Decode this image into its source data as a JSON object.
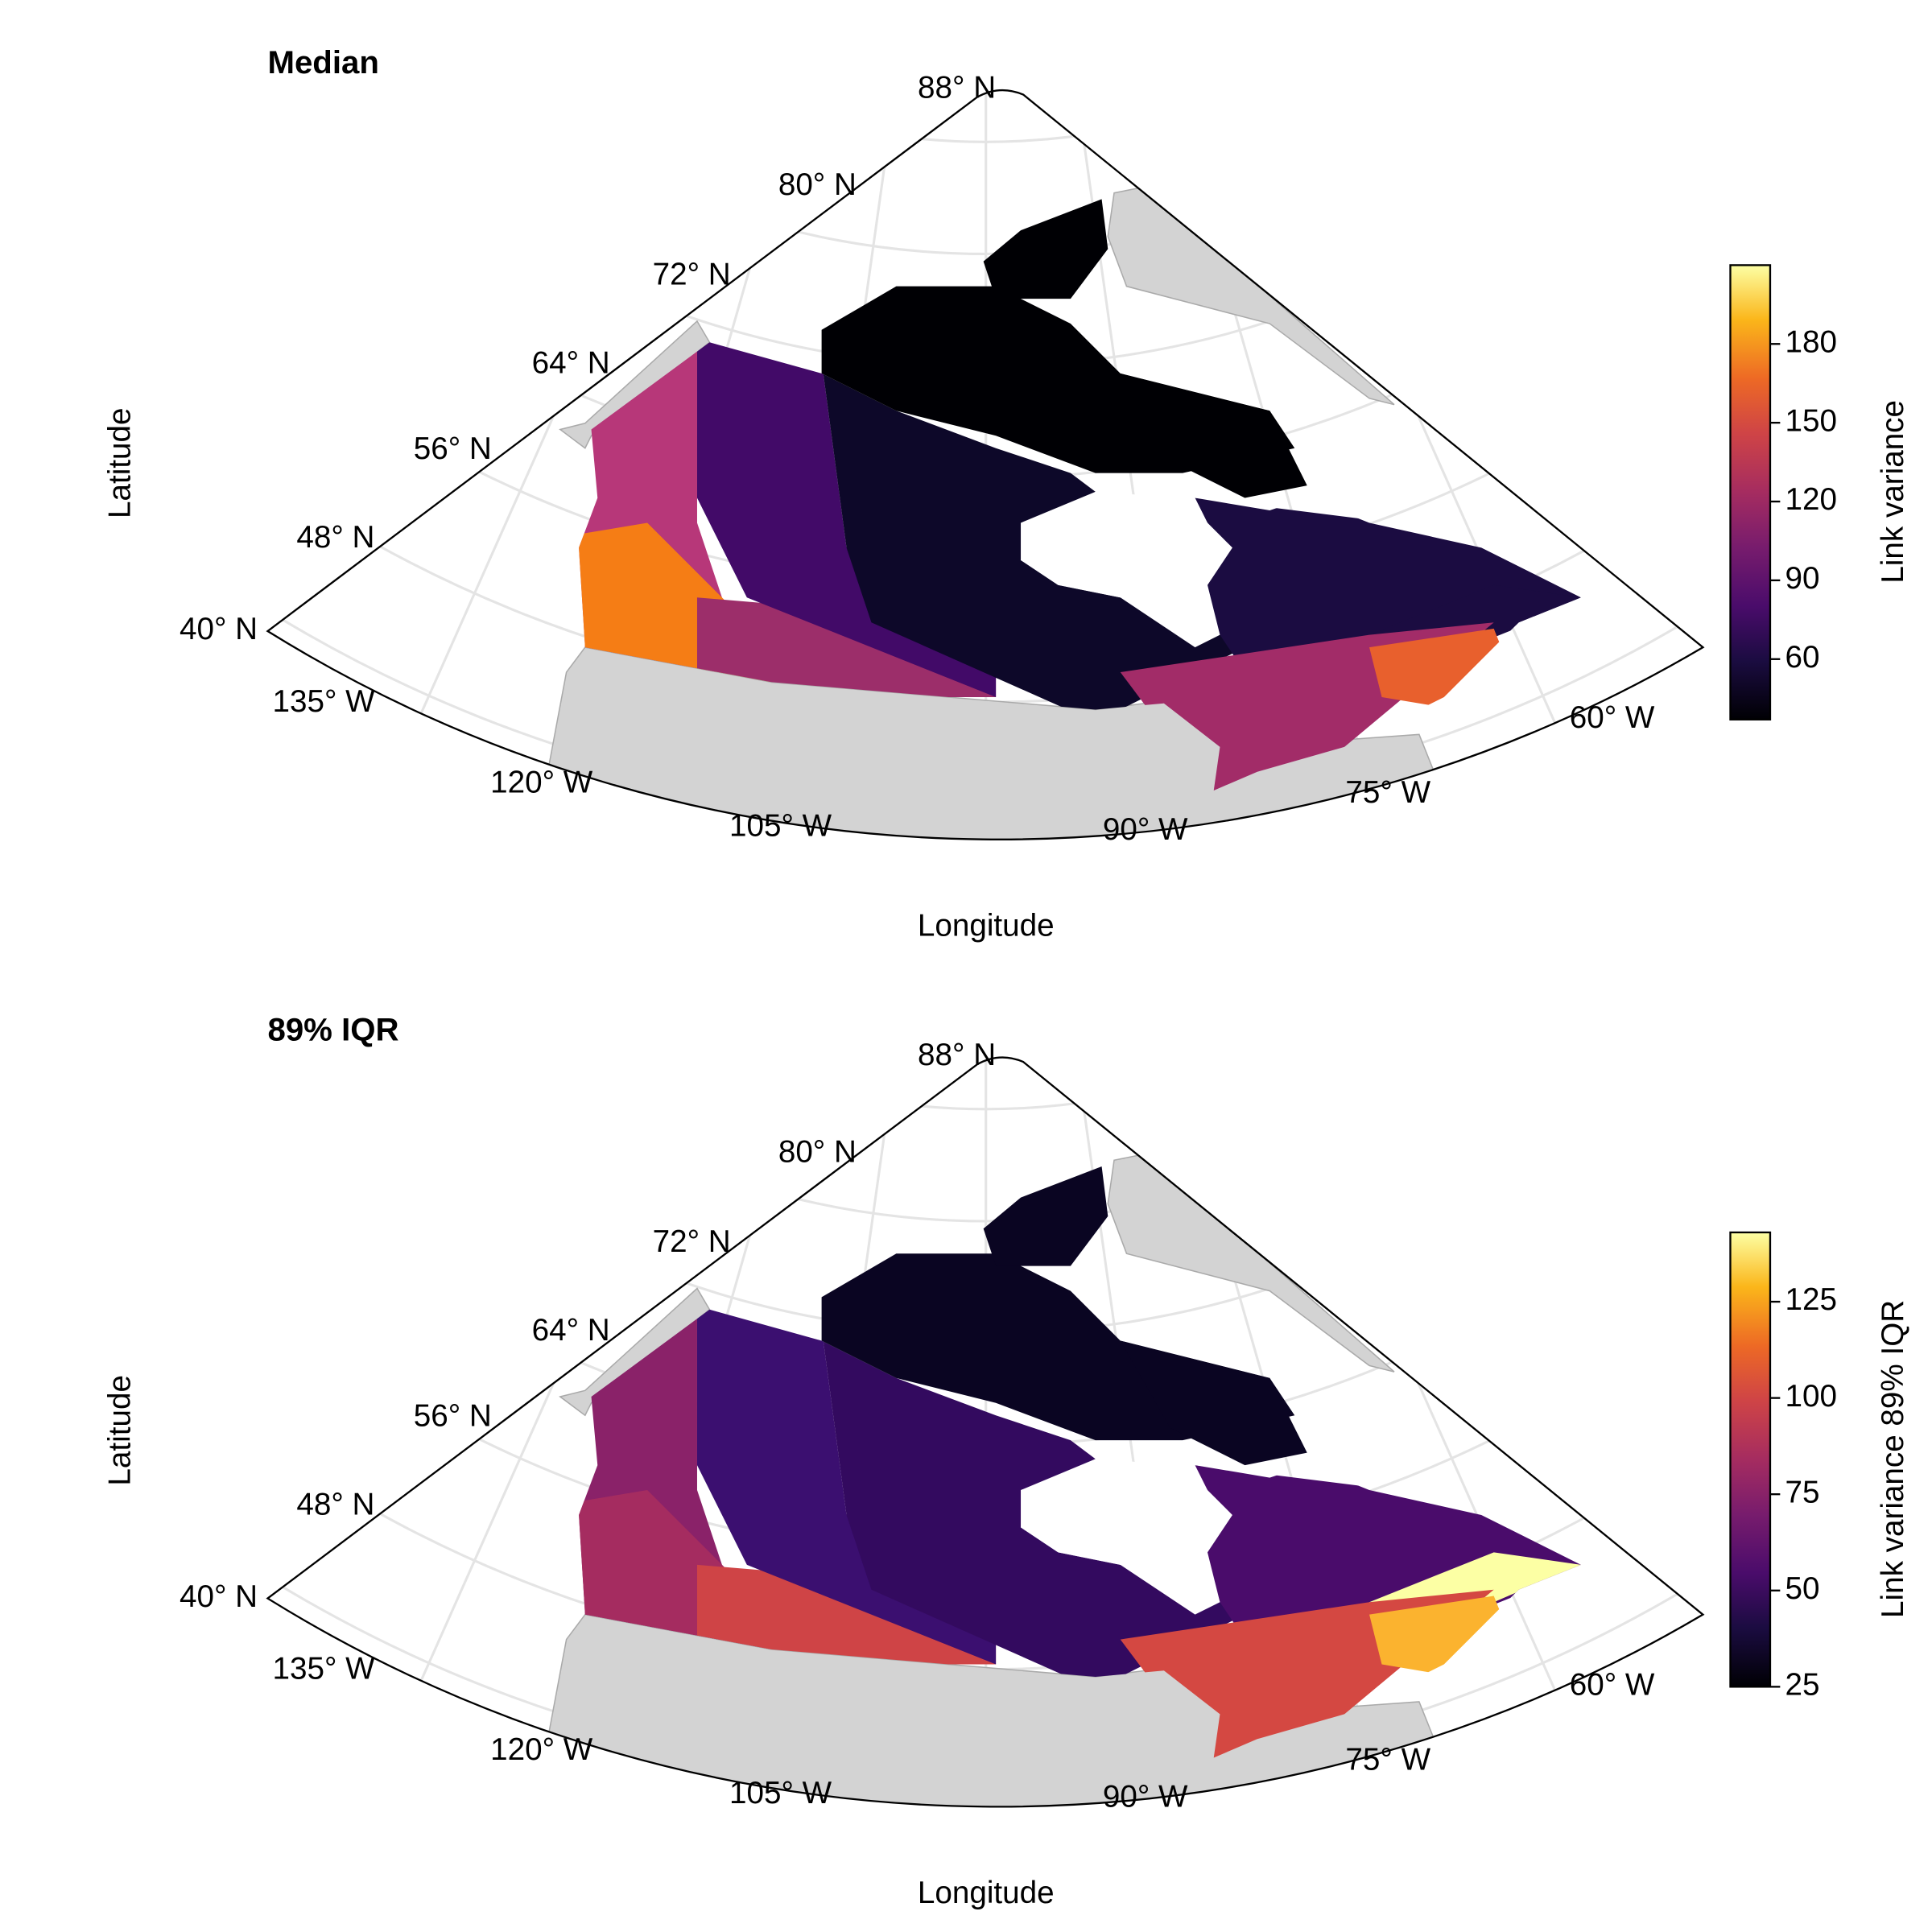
{
  "panels": [
    {
      "title": "Median",
      "lat_labels": [
        "88° N",
        "80° N",
        "72° N",
        "64° N",
        "56° N",
        "48° N",
        "40° N"
      ],
      "lon_labels": [
        "135° W",
        "120° W",
        "105° W",
        "90° W",
        "75° W",
        "60° W"
      ],
      "x_label": "Longitude",
      "y_label": "Latitude",
      "colorbar": {
        "label": "Link variance",
        "colormap": "inferno",
        "range": [
          37,
          210
        ],
        "ticks": [
          60,
          90,
          120,
          150,
          180
        ]
      }
    },
    {
      "title": "89% IQR",
      "lat_labels": [
        "88° N",
        "80° N",
        "72° N",
        "64° N",
        "56° N",
        "48° N",
        "40° N"
      ],
      "lon_labels": [
        "135° W",
        "120° W",
        "105° W",
        "90° W",
        "75° W",
        "60° W"
      ],
      "x_label": "Longitude",
      "y_label": "Latitude",
      "colorbar": {
        "label": "Link variance 89% IQR",
        "colormap": "inferno",
        "range": [
          25,
          143
        ],
        "ticks": [
          25,
          50,
          75,
          100,
          125
        ]
      }
    }
  ]
}
